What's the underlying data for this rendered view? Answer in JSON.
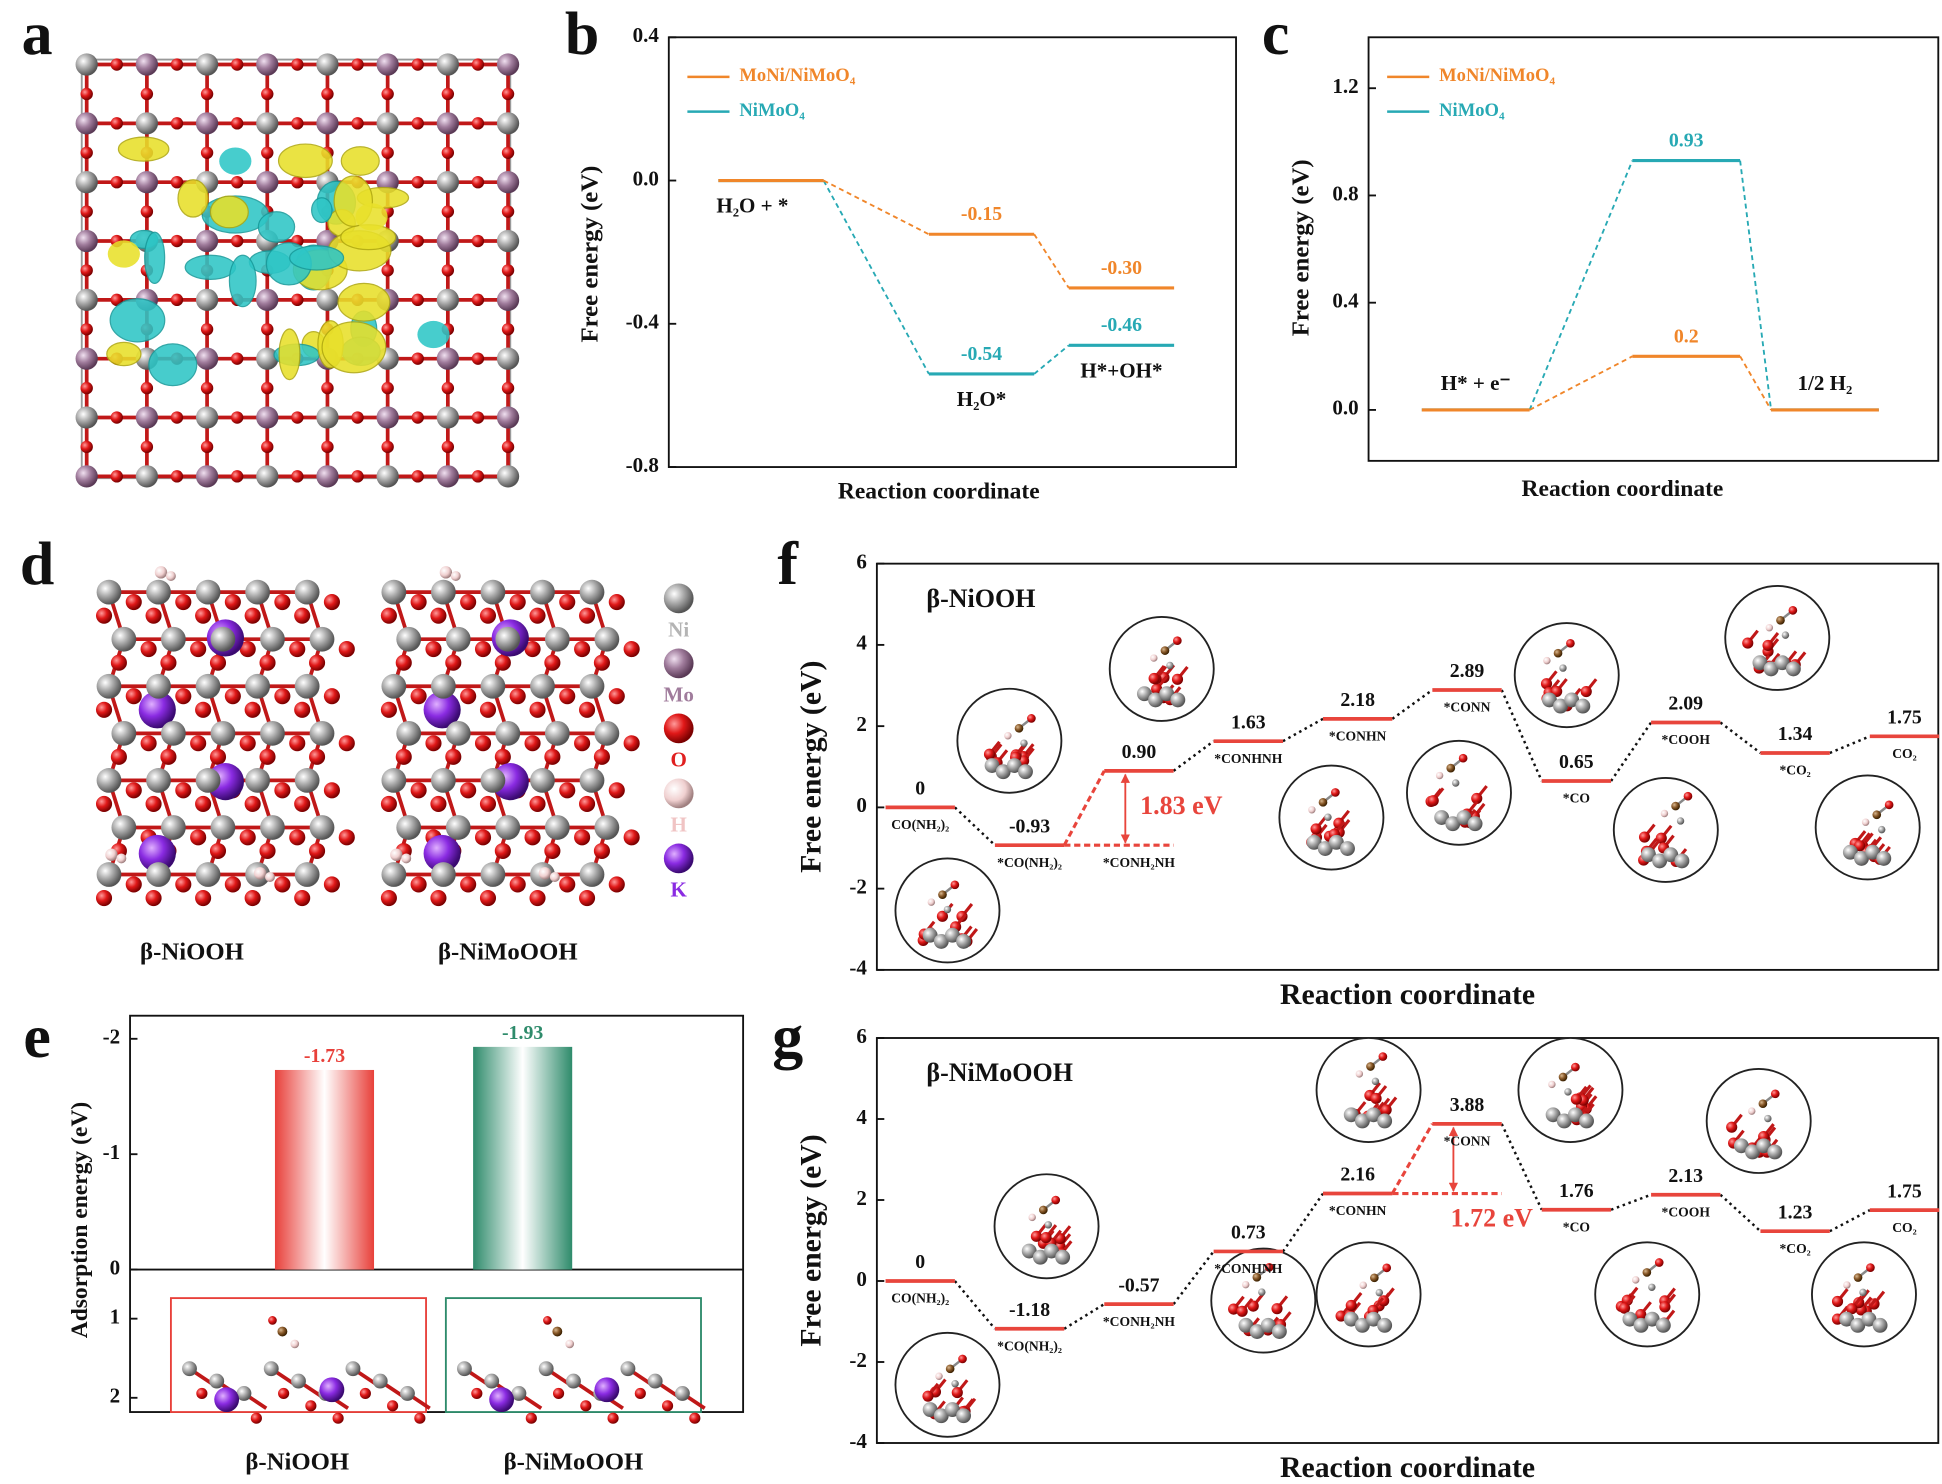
{
  "panels": [
    "a",
    "b",
    "c",
    "d",
    "e",
    "f",
    "g"
  ],
  "structure_d": {
    "labels": [
      "β-NiOOH",
      "β-NiMoOOH"
    ],
    "legend": [
      "Ni",
      "Mo",
      "O",
      "H",
      "K"
    ]
  },
  "chart_data": [
    {
      "type": "energy",
      "ylabel": "Free energy (eV)",
      "xlabel": "Reaction coordinate",
      "ylim": [
        -0.8,
        0.4
      ],
      "yticks": [
        -0.8,
        -0.4,
        {
          "value": 0,
          "label": "0.0"
        },
        0.4
      ],
      "categories": [
        "H₂O + *",
        "H₂O*",
        "H*+OH*"
      ],
      "series": [
        {
          "name": "MoNi/NiMoO₄",
          "color": "#f0862a",
          "values": [
            0,
            -0.15,
            -0.3
          ],
          "value_labels": [
            null,
            "-0.15",
            "-0.30"
          ]
        },
        {
          "name": "NiMoO₄",
          "color": "#27a9b4",
          "values": [
            0,
            -0.54,
            -0.46
          ],
          "value_labels": [
            null,
            "-0.54",
            "-0.46"
          ]
        }
      ]
    },
    {
      "type": "energy",
      "ylabel": "Free energy (eV)",
      "xlabel": "Reaction coordinate",
      "ylim": [
        -0.19,
        1.39
      ],
      "yticks": [
        {
          "value": 0,
          "label": "0.0"
        },
        0.4,
        0.8,
        1.2
      ],
      "categories": [
        "H* + e⁻",
        null,
        "1/2 H₂"
      ],
      "series": [
        {
          "name": "MoNi/NiMoO₄",
          "color": "#f0862a",
          "values": [
            0,
            0.2,
            0
          ],
          "value_labels": [
            null,
            "0.2",
            null
          ]
        },
        {
          "name": "NiMoO₄",
          "color": "#27a9b4",
          "values": [
            0,
            0.93,
            0
          ],
          "value_labels": [
            null,
            "0.93",
            null
          ]
        }
      ]
    },
    {
      "type": "bar",
      "ylabel": "Adsorption energy (eV)",
      "categories": [
        "β-NiOOH",
        "β-NiMoOOH"
      ],
      "values": [
        -1.73,
        -1.93
      ],
      "colors": [
        "#e8403a",
        "#2e8b6b"
      ],
      "ylim": [
        0,
        -2.2
      ],
      "yticks": [
        -2,
        -1,
        0
      ],
      "y2lim": [
        0.38,
        2.18
      ],
      "y2ticks": [
        1,
        2
      ]
    },
    {
      "type": "profile",
      "label": "β-NiOOH",
      "ylabel": "Free energy (eV)",
      "xlabel": "Reaction coordinate",
      "ylim": [
        -4,
        6
      ],
      "yticks": [
        -4,
        -2,
        0,
        2,
        4,
        6
      ],
      "color": "#e8453c",
      "categories": [
        "CO(NH₂)₂",
        "*CO(NH₂)₂",
        "*CONH₂NH",
        "*CONHNH",
        "*CONHN",
        "*CONN",
        "*CO",
        "*COOH",
        "*CO₂",
        "CO₂"
      ],
      "values": [
        0,
        -0.93,
        0.9,
        1.63,
        2.18,
        2.89,
        0.65,
        2.09,
        1.34,
        1.75
      ],
      "value_labels": [
        "0",
        "-0.93",
        "0.90",
        "1.63",
        "2.18",
        "2.89",
        "0.65",
        "2.09",
        "1.34",
        "1.75"
      ],
      "annotation": "1.83 eV"
    },
    {
      "type": "profile",
      "label": "β-NiMoOOH",
      "ylabel": "Free energy (eV)",
      "xlabel": "Reaction coordinate",
      "ylim": [
        -4,
        6
      ],
      "yticks": [
        -4,
        -2,
        0,
        2,
        4,
        6
      ],
      "color": "#e8453c",
      "categories": [
        "CO(NH₂)₂",
        "*CO(NH₂)₂",
        "*CONH₂NH",
        "*CONHNH",
        "*CONHN",
        "*CONN",
        "*CO",
        "*COOH",
        "*CO₂",
        "CO₂"
      ],
      "values": [
        0,
        -1.18,
        -0.57,
        0.73,
        2.16,
        3.88,
        1.76,
        2.13,
        1.23,
        1.75
      ],
      "value_labels": [
        "0",
        "-1.18",
        "-0.57",
        "0.73",
        "2.16",
        "3.88",
        "1.76",
        "2.13",
        "1.23",
        "1.75"
      ],
      "annotation": "1.72 eV"
    }
  ]
}
